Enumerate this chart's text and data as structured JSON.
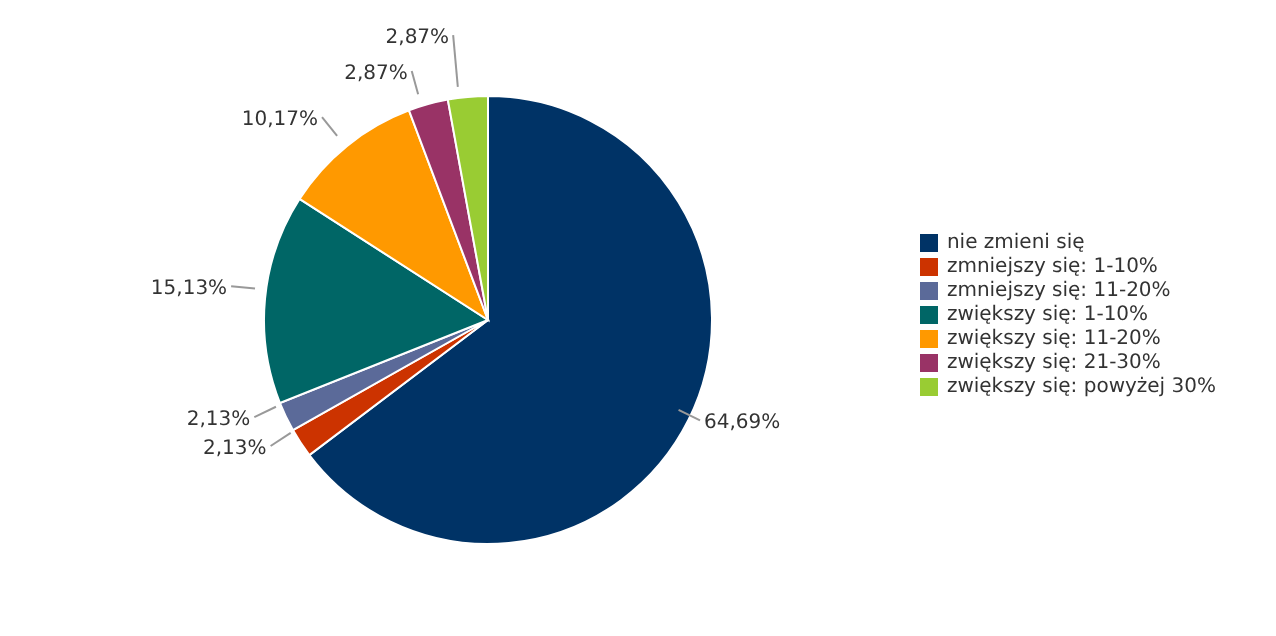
{
  "chart_data": {
    "type": "pie",
    "categories": [
      "nie zmieni się",
      "zmniejszy się: 1-10%",
      "zmniejszy się: 11-20%",
      "zwiększy się: 1-10%",
      "zwiększy się: 11-20%",
      "zwiększy się: 21-30%",
      "zwiększy się: powyżej 30%"
    ],
    "values": [
      64.69,
      2.13,
      2.13,
      15.13,
      10.17,
      2.87,
      2.87
    ],
    "value_labels": [
      "64,69%",
      "2,13%",
      "2,13%",
      "15,13%",
      "10,17%",
      "2,87%",
      "2,87%"
    ],
    "colors": [
      "#003366",
      "#cc3300",
      "#5b6a99",
      "#006666",
      "#ff9900",
      "#993366",
      "#99cc33"
    ],
    "legend": "right"
  }
}
